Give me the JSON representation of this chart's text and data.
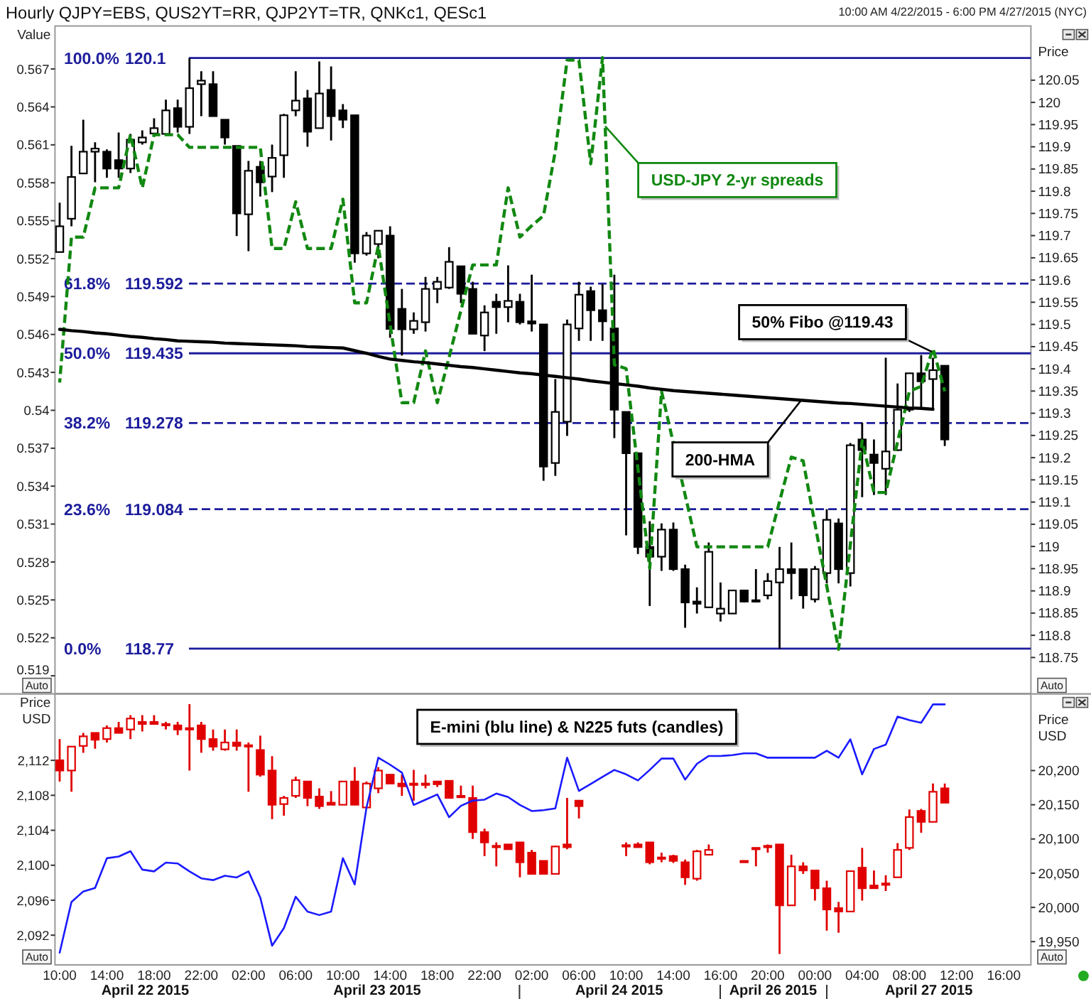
{
  "chart_data": [
    {
      "type": "candlestick",
      "title": "Hourly QJPY=EBS, QUS2YT=RR, QJP2YT=TR, QNKc1, QESc1",
      "subtitle": "10:00 AM 4/22/2015 - 6:00 PM 4/27/2015 (NYC)",
      "ylabel": "Value",
      "y2label": "Price",
      "tick_labels": "y",
      "categories": [
        null,
        null,
        null,
        null,
        null,
        null,
        null,
        null,
        null,
        null,
        null,
        null,
        null,
        null,
        null,
        null,
        null,
        null,
        null,
        null,
        null,
        null,
        null,
        null,
        null,
        null,
        null,
        null,
        null,
        null,
        null,
        null,
        null,
        null,
        null,
        null,
        null,
        null,
        null,
        null,
        null,
        null,
        null,
        null,
        null,
        null,
        null,
        null,
        null,
        null,
        null,
        null,
        null,
        null,
        null,
        null,
        null,
        null,
        null,
        null,
        null,
        null,
        null,
        null,
        null,
        null,
        null,
        null,
        null,
        null,
        null,
        null,
        null,
        null,
        null,
        null,
        null,
        null,
        null,
        null,
        null
      ],
      "ylim": [
        0.5176,
        0.5704
      ],
      "yticks": [
        0.519,
        0.522,
        0.525,
        0.528,
        0.531,
        0.534,
        0.537,
        0.54,
        0.543,
        0.546,
        0.549,
        0.552,
        0.555,
        0.558,
        0.561,
        0.564,
        0.567
      ],
      "y2lim": [
        118.669,
        120.172
      ],
      "y2ticks": [
        118.75,
        118.8,
        118.85,
        118.9,
        118.95,
        119,
        119.05,
        119.1,
        119.15,
        119.2,
        119.25,
        119.3,
        119.35,
        119.4,
        119.45,
        119.5,
        119.55,
        119.6,
        119.65,
        119.7,
        119.75,
        119.8,
        119.85,
        119.9,
        119.95,
        120,
        120.05
      ],
      "series": [
        {
          "axis": "y2",
          "color": "#000000",
          "ohlc": [
            [
              119.663,
              119.774,
              119.663,
              119.721
            ],
            [
              119.738,
              119.902,
              119.721,
              119.832
            ],
            [
              119.84,
              119.961,
              119.84,
              119.889
            ],
            [
              119.889,
              119.91,
              119.82,
              119.896
            ],
            [
              119.889,
              119.894,
              119.83,
              119.851
            ],
            [
              119.87,
              119.932,
              119.83,
              119.851
            ],
            [
              119.851,
              119.929,
              119.841,
              119.916
            ],
            [
              119.91,
              119.937,
              119.905,
              119.921
            ],
            [
              119.93,
              119.964,
              119.926,
              119.942
            ],
            [
              119.929,
              120.006,
              119.929,
              119.982
            ],
            [
              119.987,
              120.006,
              119.932,
              119.945
            ],
            [
              119.945,
              120.1,
              119.929,
              120.032
            ],
            [
              120.041,
              120.07,
              119.969,
              120.049
            ],
            [
              120.041,
              120.07,
              119.969,
              119.969
            ],
            [
              119.961,
              119.961,
              119.905,
              119.921
            ],
            [
              119.902,
              119.902,
              119.699,
              119.75
            ],
            [
              119.748,
              119.868,
              119.665,
              119.846
            ],
            [
              119.855,
              119.868,
              119.788,
              119.82
            ],
            [
              119.833,
              119.905,
              119.798,
              119.875
            ],
            [
              119.881,
              119.974,
              119.83,
              119.971
            ],
            [
              119.982,
              120.07,
              119.969,
              120.004
            ],
            [
              120.009,
              120.028,
              119.9,
              119.934
            ],
            [
              119.942,
              120.092,
              119.942,
              120.02
            ],
            [
              120.028,
              120.081,
              119.914,
              119.969
            ],
            [
              119.982,
              119.996,
              119.942,
              119.961
            ],
            [
              119.971,
              119.971,
              119.639,
              119.66
            ],
            [
              119.66,
              119.708,
              119.655,
              119.7
            ],
            [
              119.681,
              119.711,
              119.649,
              119.711
            ],
            [
              119.7,
              119.721,
              119.47,
              119.49
            ],
            [
              119.535,
              119.58,
              119.43,
              119.489
            ],
            [
              119.489,
              119.527,
              119.479,
              119.508
            ],
            [
              119.505,
              119.607,
              119.484,
              119.58
            ],
            [
              119.58,
              119.607,
              119.548,
              119.596
            ],
            [
              119.583,
              119.674,
              119.58,
              119.641
            ],
            [
              119.631,
              119.631,
              119.548,
              119.569
            ],
            [
              119.58,
              119.596,
              119.479,
              119.479
            ],
            [
              119.475,
              119.543,
              119.44,
              119.527
            ],
            [
              119.551,
              119.569,
              119.479,
              119.539
            ],
            [
              119.539,
              119.633,
              119.505,
              119.553
            ],
            [
              119.551,
              119.569,
              119.5,
              119.505
            ],
            [
              119.507,
              119.612,
              119.484,
              119.502
            ],
            [
              119.5,
              119.5,
              119.148,
              119.18
            ],
            [
              119.188,
              119.377,
              119.159,
              119.303
            ],
            [
              119.281,
              119.511,
              119.249,
              119.5
            ],
            [
              119.491,
              119.596,
              119.463,
              119.567
            ],
            [
              119.575,
              119.585,
              119.463,
              119.532
            ],
            [
              119.532,
              119.591,
              119.463,
              119.507
            ],
            [
              119.491,
              119.612,
              119.244,
              119.308
            ],
            [
              119.303,
              119.303,
              119.025,
              119.21
            ],
            [
              119.21,
              119.21,
              118.983,
              118.999
            ],
            [
              118.999,
              119.057,
              118.866,
              118.977
            ],
            [
              118.977,
              119.052,
              118.945,
              119.038
            ],
            [
              119.038,
              119.054,
              118.945,
              118.949
            ],
            [
              118.949,
              118.959,
              118.817,
              118.874
            ],
            [
              118.876,
              118.908,
              118.849,
              118.871
            ],
            [
              118.863,
              119.009,
              118.863,
              118.988
            ],
            [
              118.849,
              118.919,
              118.831,
              118.86
            ],
            [
              118.849,
              118.901,
              118.849,
              118.901
            ],
            [
              118.901,
              118.901,
              118.874,
              118.876
            ],
            [
              118.879,
              118.949,
              118.874,
              118.876
            ],
            [
              118.89,
              118.94,
              118.881,
              118.922
            ],
            [
              118.919,
              118.999,
              118.77,
              118.949
            ],
            [
              118.949,
              119.009,
              118.881,
              118.94
            ],
            [
              118.949,
              118.949,
              118.86,
              118.89
            ],
            [
              118.881,
              118.956,
              118.874,
              118.949
            ],
            [
              118.94,
              119.084,
              118.917,
              119.06
            ],
            [
              119.052,
              119.063,
              118.917,
              118.949
            ],
            [
              118.94,
              119.233,
              118.91,
              119.228
            ],
            [
              119.241,
              119.279,
              119.111,
              119.217
            ],
            [
              119.207,
              119.241,
              119.116,
              119.188
            ],
            [
              119.175,
              119.425,
              119.116,
              119.214
            ],
            [
              119.217,
              119.367,
              119.215,
              119.308
            ],
            [
              119.308,
              119.39,
              119.303,
              119.39
            ],
            [
              119.39,
              119.431,
              119.313,
              119.372
            ],
            [
              119.377,
              119.425,
              119.308,
              119.397
            ],
            [
              119.407,
              119.407,
              119.226,
              119.241
            ],
            null,
            null,
            null,
            null,
            null
          ]
        },
        {
          "type": "line",
          "name": "USD-JPY 2-yr spreads",
          "color": "#118811",
          "line_style": "dashed",
          "values": [
            0.5422,
            0.5537,
            0.5537,
            0.5576,
            0.5576,
            0.5576,
            0.5618,
            0.5576,
            0.5618,
            0.5618,
            0.5618,
            0.5608,
            0.5608,
            0.5608,
            0.5608,
            0.5608,
            0.5608,
            0.5608,
            0.5528,
            0.5528,
            0.5565,
            0.5528,
            0.5528,
            0.5528,
            0.5567,
            0.5485,
            0.5485,
            0.553,
            0.5468,
            0.5406,
            0.5406,
            0.5447,
            0.5406,
            0.5442,
            0.5479,
            0.5515,
            0.5515,
            0.5515,
            0.5576,
            0.5537,
            0.5546,
            0.5554,
            0.5605,
            0.5677,
            0.5677,
            0.5595,
            0.5679,
            0.5436,
            0.5433,
            0.5354,
            0.5275,
            0.5415,
            0.5374,
            0.5333,
            0.5292,
            0.5292,
            0.5292,
            0.5292,
            0.5292,
            0.5292,
            0.5292,
            0.5328,
            0.5363,
            0.536,
            0.531,
            0.5261,
            0.5211,
            0.5294,
            0.5376,
            0.5335,
            0.5335,
            0.5375,
            0.5415,
            0.5419,
            0.5449,
            0.5415,
            null,
            null,
            null,
            null,
            null
          ]
        },
        {
          "type": "line",
          "name": "200-HMA",
          "axis": "y2",
          "color": "#000000",
          "values": [
            119.489,
            119.486,
            119.484,
            119.481,
            119.479,
            119.476,
            119.473,
            119.471,
            119.468,
            119.466,
            119.463,
            119.462,
            119.461,
            119.46,
            119.458,
            119.457,
            119.456,
            119.455,
            119.454,
            119.453,
            119.452,
            119.45,
            119.449,
            119.448,
            119.447,
            119.441,
            119.435,
            119.428,
            119.422,
            119.419,
            119.416,
            119.414,
            119.411,
            119.408,
            119.405,
            119.403,
            119.4,
            119.397,
            119.394,
            119.391,
            119.389,
            119.386,
            119.383,
            119.38,
            119.377,
            119.373,
            119.37,
            119.367,
            119.364,
            119.361,
            119.357,
            119.354,
            119.351,
            119.349,
            119.347,
            119.345,
            119.343,
            119.341,
            119.339,
            119.337,
            119.335,
            119.333,
            119.331,
            119.329,
            119.327,
            119.325,
            119.323,
            119.322,
            119.32,
            119.318,
            119.316,
            119.314,
            119.312,
            119.311,
            119.309,
            null,
            null,
            null,
            null,
            null,
            null
          ]
        }
      ],
      "ref_lines": [
        {
          "axis": "y2",
          "value": 120.1,
          "label": "100.0% 120.1",
          "color": "#1c1c9c",
          "line_style": "solid"
        },
        {
          "axis": "y2",
          "value": 119.592,
          "label": "61.8% 119.592",
          "color": "#1c1c9c",
          "line_style": "dashed"
        },
        {
          "axis": "y2",
          "value": 119.435,
          "label": "50.0% 119.435",
          "color": "#1c1c9c",
          "line_style": "solid"
        },
        {
          "axis": "y2",
          "value": 119.278,
          "label": "38.2% 119.278",
          "color": "#1c1c9c",
          "line_style": "dashed"
        },
        {
          "axis": "y2",
          "value": 119.084,
          "label": "23.6% 119.084",
          "color": "#1c1c9c",
          "line_style": "dashed"
        },
        {
          "axis": "y2",
          "value": 118.77,
          "label": "0.0% 118.77",
          "color": "#1c1c9c",
          "line_style": "solid"
        }
      ],
      "annotations": [
        "50% Fibo @119.43",
        "Auto",
        "Auto"
      ]
    },
    {
      "type": "candlestick",
      "ylabel": "Price USD",
      "y2label": "Price USD",
      "categories": [
        "10:00",
        null,
        null,
        null,
        "14:00",
        null,
        null,
        null,
        "18:00",
        null,
        null,
        null,
        "22:00",
        null,
        null,
        null,
        "02:00",
        null,
        null,
        null,
        "06:00",
        null,
        null,
        null,
        "10:00",
        null,
        null,
        null,
        "14:00",
        null,
        null,
        null,
        "18:00",
        null,
        null,
        null,
        "22:00",
        null,
        null,
        null,
        "02:00",
        null,
        null,
        null,
        "06:00",
        null,
        null,
        null,
        "10:00",
        null,
        null,
        null,
        "14:00",
        null,
        null,
        null,
        "16:00",
        null,
        null,
        null,
        "20:00",
        null,
        null,
        null,
        "00:00",
        null,
        null,
        null,
        "04:00",
        null,
        null,
        null,
        "08:00",
        null,
        null,
        null,
        "12:00",
        null,
        null,
        null,
        "16:00"
      ],
      "ylim": [
        2088.6,
        2119.6
      ],
      "yticks": [
        {
          "value": 2092,
          "label": "2,092"
        },
        {
          "value": 2096,
          "label": "2,096"
        },
        {
          "value": 2100,
          "label": "2,100"
        },
        {
          "value": 2104,
          "label": "2,104"
        },
        {
          "value": 2108,
          "label": "2,108"
        },
        {
          "value": 2112,
          "label": "2,112"
        }
      ],
      "y2lim": [
        19916,
        20312
      ],
      "y2ticks": [
        {
          "value": 19950,
          "label": "19,950"
        },
        {
          "value": 20000,
          "label": "20,000"
        },
        {
          "value": 20050,
          "label": "20,050"
        },
        {
          "value": 20100,
          "label": "20,100"
        },
        {
          "value": 20150,
          "label": "20,150"
        },
        {
          "value": 20200,
          "label": "20,200"
        }
      ],
      "series": [
        {
          "axis": "y2",
          "color": "#e00000",
          "ohlc": [
            [
              20215,
              20246,
              20184,
              20200
            ],
            [
              20200,
              20235,
              20169,
              20235
            ],
            [
              20236,
              20255,
              20226,
              20250
            ],
            [
              20255,
              20255,
              20232,
              20245
            ],
            [
              20246,
              20266,
              20241,
              20262
            ],
            [
              20262,
              20271,
              20255,
              20255
            ],
            [
              20260,
              20281,
              20246,
              20276
            ],
            [
              20271,
              20281,
              20257,
              20268
            ],
            [
              20271,
              20281,
              20268,
              20268
            ],
            [
              20268,
              20271,
              20260,
              20266
            ],
            [
              20266,
              20271,
              20252,
              20260
            ],
            [
              20262,
              20297,
              20200,
              20260
            ],
            [
              20266,
              20271,
              20226,
              20246
            ],
            [
              20246,
              20260,
              20229,
              20235
            ],
            [
              20231,
              20260,
              20229,
              20241
            ],
            [
              20241,
              20260,
              20229,
              20236
            ],
            [
              20237,
              20241,
              20169,
              20236
            ],
            [
              20230,
              20251,
              20191,
              20194
            ],
            [
              20200,
              20221,
              20129,
              20150
            ],
            [
              20151,
              20163,
              20134,
              20160
            ],
            [
              20163,
              20191,
              20160,
              20186
            ],
            [
              20184,
              20184,
              20148,
              20160
            ],
            [
              20162,
              20174,
              20144,
              20148
            ],
            [
              20153,
              20170,
              20150,
              20150
            ],
            [
              20150,
              20184,
              20150,
              20184
            ],
            [
              20184,
              20205,
              20150,
              20150
            ],
            [
              20146,
              20184,
              20146,
              20181
            ],
            [
              20174,
              20205,
              20167,
              20200
            ],
            [
              20194,
              20194,
              20181,
              20181
            ],
            [
              20181,
              20194,
              20163,
              20177
            ],
            [
              20181,
              20201,
              20156,
              20179
            ],
            [
              20181,
              20194,
              20174,
              20180
            ],
            [
              20184,
              20184,
              20176,
              20180
            ],
            [
              20185,
              20185,
              20160,
              20160
            ],
            [
              20163,
              20178,
              20163,
              20163
            ],
            [
              20160,
              20178,
              20100,
              20110
            ],
            [
              20110,
              20115,
              20075,
              20095
            ],
            [
              20090,
              20095,
              20060,
              20088
            ],
            [
              20092,
              20092,
              20085,
              20085
            ],
            [
              20095,
              20095,
              20044,
              20066
            ],
            [
              20080,
              20084,
              20049,
              20049
            ],
            [
              20068,
              20068,
              20049,
              20049
            ],
            [
              20049,
              20090,
              20049,
              20089
            ],
            [
              20092,
              20160,
              20085,
              20088
            ],
            [
              20156,
              20157,
              20130,
              20148
            ],
            null,
            null,
            null,
            [
              20091,
              20095,
              20075,
              20090
            ],
            [
              20092,
              20095,
              20088,
              20088
            ],
            [
              20095,
              20095,
              20063,
              20066
            ],
            [
              20073,
              20080,
              20066,
              20072
            ],
            [
              20075,
              20077,
              20065,
              20068
            ],
            [
              20066,
              20070,
              20033,
              20044
            ],
            [
              20042,
              20084,
              20039,
              20082
            ],
            [
              20077,
              20092,
              20077,
              20084
            ],
            null,
            null,
            [
              20068,
              20068,
              20068,
              20068
            ],
            [
              20087,
              20087,
              20060,
              20087
            ],
            [
              20090,
              20092,
              20080,
              20090
            ],
            [
              20092,
              20092,
              19932,
              20003
            ],
            [
              20003,
              20077,
              20003,
              20060
            ],
            [
              20060,
              20066,
              20049,
              20054
            ],
            [
              20054,
              20054,
              20010,
              20028
            ],
            [
              20028,
              20039,
              19966,
              19997
            ],
            [
              19999,
              20008,
              19963,
              19994
            ],
            [
              19994,
              20053,
              19994,
              20053
            ],
            [
              20058,
              20087,
              20010,
              20028
            ],
            [
              20032,
              20054,
              20028,
              20028
            ],
            [
              20033,
              20047,
              20024,
              20035
            ],
            [
              20044,
              20094,
              20044,
              20084
            ],
            [
              20087,
              20143,
              20084,
              20132
            ],
            [
              20141,
              20144,
              20109,
              20125
            ],
            [
              20125,
              20181,
              20125,
              20169
            ],
            [
              20174,
              20181,
              20153,
              20153
            ],
            null,
            null,
            null,
            null,
            null
          ]
        },
        {
          "type": "line",
          "color": "#1a1aff",
          "values": [
            2090.0,
            2095.8,
            2097.0,
            2097.4,
            2100.8,
            2101.0,
            2101.6,
            2099.5,
            2099.3,
            2100.3,
            2100.2,
            2099.3,
            2098.5,
            2098.3,
            2098.8,
            2098.6,
            2099.3,
            2096.3,
            2090.8,
            2092.8,
            2096.4,
            2094.7,
            2094.3,
            2094.7,
            2100.8,
            2097.8,
            2106.6,
            2112.3,
            2111.5,
            2110.6,
            2106.9,
            2107.5,
            2108.1,
            2105.5,
            2106.8,
            2107.4,
            2107.5,
            2108.2,
            2107.8,
            2106.9,
            2106.2,
            2106.3,
            2106.5,
            2112.3,
            2108.5,
            2109.3,
            2110.1,
            2110.9,
            2110.4,
            2109.7,
            2110.9,
            2112.2,
            2112.2,
            2109.8,
            2111.6,
            2112.5,
            2112.5,
            2112.6,
            2112.8,
            2112.8,
            2112.3,
            2112.3,
            2112.3,
            2112.3,
            2112.3,
            2113.1,
            2112.3,
            2114.4,
            2110.4,
            2113.3,
            2113.8,
            2117.0,
            2116.6,
            2116.3,
            2118.4,
            2118.4,
            null,
            null,
            null,
            null,
            null
          ]
        }
      ],
      "annotations": [
        "E-mini (blu line) & N225 futs (candles)",
        "Auto",
        "Auto",
        "April 22 2015",
        "April 23 2015",
        "April 24 2015",
        "April 26 2015",
        "April 27 2015"
      ]
    }
  ]
}
